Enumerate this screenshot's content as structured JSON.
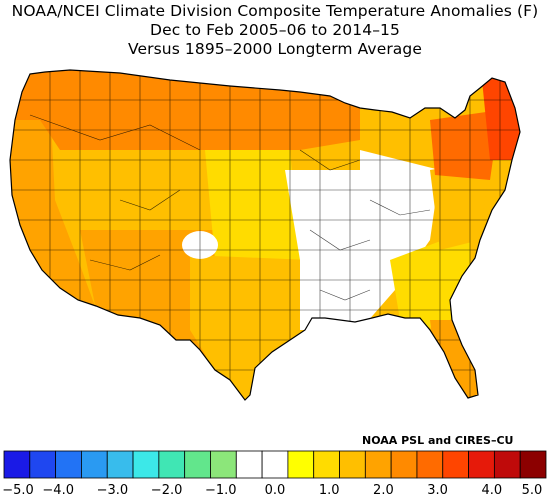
{
  "title": {
    "line1": "NOAA/NCEI Climate Division Composite Temperature Anomalies (F)",
    "line2": "Dec to Feb 2005–06 to 2014–15",
    "line3": "Versus 1895–2000 Longterm Average"
  },
  "credit": "NOAA PSL and CIRES–CU",
  "legend": {
    "colors": [
      "#1a1ae6",
      "#1f47f0",
      "#2273f5",
      "#2a9af2",
      "#38bcec",
      "#3ce8e8",
      "#40e6b4",
      "#62e68c",
      "#8ce67a",
      "#ffffff",
      "#ffffff",
      "#ffff00",
      "#ffdc00",
      "#ffbf00",
      "#ffa300",
      "#ff8a00",
      "#ff6b00",
      "#ff4500",
      "#e61a0a",
      "#bf0a0a",
      "#8c0000"
    ],
    "tick_labels": [
      "−5.0",
      "−4.0",
      "−3.0",
      "−2.0",
      "−1.0",
      "0.0",
      "1.0",
      "2.0",
      "3.0",
      "4.0",
      "5.0"
    ],
    "range": [
      -5.0,
      5.0
    ]
  },
  "map": {
    "region": "Contiguous United States",
    "regions": [
      {
        "name": "pacific-northwest",
        "color": "#ff8a00"
      },
      {
        "name": "northern-rockies",
        "color": "#ff8a00"
      },
      {
        "name": "northern-plains",
        "color": "#ff8a00"
      },
      {
        "name": "upper-midwest",
        "color": "#ff8a00"
      },
      {
        "name": "california",
        "color": "#ffa300"
      },
      {
        "name": "great-basin",
        "color": "#ffbf00"
      },
      {
        "name": "southwest",
        "color": "#ffa300"
      },
      {
        "name": "central-plains",
        "color": "#ffdc00"
      },
      {
        "name": "texas",
        "color": "#ffbf00"
      },
      {
        "name": "mississippi-valley",
        "color": "#ffffff"
      },
      {
        "name": "ohio-valley",
        "color": "#ffffff"
      },
      {
        "name": "southeast",
        "color": "#ffdc00"
      },
      {
        "name": "florida",
        "color": "#ffa300"
      },
      {
        "name": "mid-atlantic",
        "color": "#ffbf00"
      },
      {
        "name": "northeast",
        "color": "#ff6b00"
      },
      {
        "name": "new-england",
        "color": "#ff4500"
      }
    ]
  }
}
